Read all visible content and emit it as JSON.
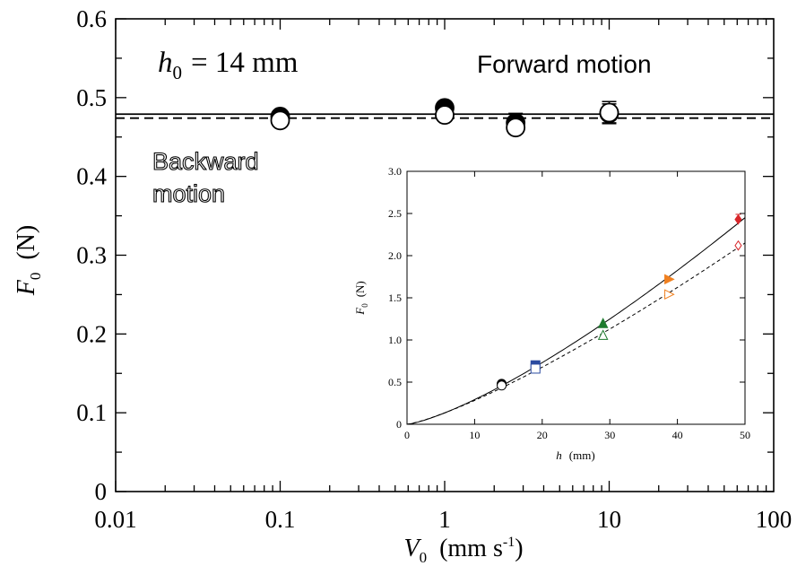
{
  "chart_data": [
    {
      "type": "scatter",
      "xlabel": "V",
      "xlabel_sub": "0",
      "xlabel_unit": "(mm s",
      "xlabel_unit_sup": "-1",
      "xlabel_unit_end": ")",
      "ylabel": "F",
      "ylabel_sub": "0",
      "ylabel_unit": "(N)",
      "xscale": "log",
      "xlim": [
        0.01,
        100
      ],
      "ylim": [
        0,
        0.6
      ],
      "x_ticks": [
        0.01,
        0.1,
        1,
        10,
        100
      ],
      "x_tick_labels": [
        "0.01",
        "0.1",
        "1",
        "10",
        "100"
      ],
      "y_ticks": [
        0,
        0.1,
        0.2,
        0.3,
        0.4,
        0.5,
        0.6
      ],
      "y_tick_labels": [
        "0",
        "0.1",
        "0.2",
        "0.3",
        "0.4",
        "0.5",
        "0.6"
      ],
      "annotations": {
        "h0_lhs": "h",
        "h0_sub": "0",
        "h0_rhs": "= 14 mm",
        "forward": "Forward motion",
        "backward_line1": "Backward",
        "backward_line2": "motion"
      },
      "series": [
        {
          "name": "Forward motion",
          "marker": "filled-circle",
          "color": "#000000",
          "x": [
            0.1,
            1,
            2.7,
            10
          ],
          "y": [
            0.476,
            0.487,
            0.468,
            0.48
          ],
          "yerr": [
            0.004,
            0.004,
            0.012,
            0.012
          ]
        },
        {
          "name": "Backward motion",
          "marker": "open-circle",
          "color": "#000000",
          "x": [
            0.1,
            1,
            2.7,
            10
          ],
          "y": [
            0.471,
            0.478,
            0.462,
            0.481
          ],
          "yerr": [
            0.004,
            0.004,
            0.008,
            0.014
          ]
        }
      ],
      "reference_lines": [
        {
          "style": "solid",
          "y": 0.479
        },
        {
          "style": "dashed",
          "y": 0.474
        }
      ]
    },
    {
      "type": "scatter",
      "xlabel": "h",
      "xlabel_unit": "(mm)",
      "ylabel": "F",
      "ylabel_sub": "0",
      "ylabel_unit": "(N)",
      "xlim": [
        0,
        50
      ],
      "ylim": [
        0,
        3.0
      ],
      "x_ticks": [
        0,
        10,
        20,
        30,
        40,
        50
      ],
      "x_tick_labels": [
        "0",
        "10",
        "20",
        "30",
        "40",
        "50"
      ],
      "y_ticks": [
        0,
        0.5,
        1.0,
        1.5,
        2.0,
        2.5,
        3.0
      ],
      "y_tick_labels": [
        "0",
        "0.5",
        "1.0",
        "1.5",
        "2.0",
        "2.5",
        "3.0"
      ],
      "points": [
        {
          "x": 14,
          "y": 0.48,
          "marker": "circle",
          "filled": true,
          "color": "#000000"
        },
        {
          "x": 14,
          "y": 0.46,
          "marker": "circle",
          "filled": false,
          "color": "#000000"
        },
        {
          "x": 19,
          "y": 0.7,
          "marker": "square",
          "filled": true,
          "color": "#2b4aa0"
        },
        {
          "x": 19,
          "y": 0.66,
          "marker": "square",
          "filled": false,
          "color": "#2b4aa0"
        },
        {
          "x": 29,
          "y": 1.2,
          "marker": "triangle-up",
          "filled": true,
          "color": "#1e7a2e"
        },
        {
          "x": 29,
          "y": 1.06,
          "marker": "triangle-up",
          "filled": false,
          "color": "#1e7a2e"
        },
        {
          "x": 38.8,
          "y": 1.72,
          "marker": "triangle-right",
          "filled": true,
          "color": "#f08020"
        },
        {
          "x": 38.8,
          "y": 1.54,
          "marker": "triangle-right",
          "filled": false,
          "color": "#f08020"
        },
        {
          "x": 49,
          "y": 2.43,
          "marker": "diamond",
          "filled": true,
          "color": "#d8262a",
          "yerr": 0.06
        },
        {
          "x": 49,
          "y": 2.12,
          "marker": "diamond",
          "filled": false,
          "color": "#d8262a"
        }
      ],
      "fit_curves": [
        {
          "style": "solid",
          "y_at_50": 2.45,
          "exponent": 1.32
        },
        {
          "style": "dashed",
          "y_at_50": 2.15,
          "exponent": 1.26
        }
      ]
    }
  ]
}
